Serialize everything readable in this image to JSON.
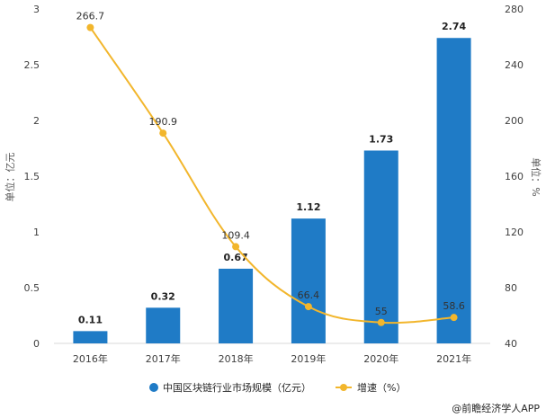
{
  "chart_data": {
    "type": "bar",
    "categories": [
      "2016年",
      "2017年",
      "2018年",
      "2019年",
      "2020年",
      "2021年"
    ],
    "ylabel": "单位：亿元",
    "y2label": "单位：%",
    "ylim": [
      0,
      3
    ],
    "y2lim": [
      40,
      280
    ],
    "yticks": [
      "0",
      "0.5",
      "1",
      "1.5",
      "2",
      "2.5",
      "3"
    ],
    "y2ticks": [
      "40",
      "80",
      "120",
      "160",
      "200",
      "240",
      "280"
    ],
    "series": [
      {
        "name": "中国区块链行业市场规模（亿元）",
        "type": "bar",
        "axis": "left",
        "color": "#1f7bc6",
        "values": [
          0.11,
          0.32,
          0.67,
          1.12,
          1.73,
          2.74
        ],
        "labels": [
          "0.11",
          "0.32",
          "0.67",
          "1.12",
          "1.73",
          "2.74"
        ]
      },
      {
        "name": "增速（%）",
        "type": "line",
        "axis": "right",
        "color": "#f2b62c",
        "values": [
          266.7,
          190.9,
          109.4,
          66.4,
          55,
          58.6
        ],
        "labels": [
          "266.7",
          "190.9",
          "109.4",
          "66.4",
          "55",
          "58.6"
        ]
      }
    ],
    "legend_position": "bottom",
    "grid": false
  },
  "credit": "@前瞻经济学人APP"
}
